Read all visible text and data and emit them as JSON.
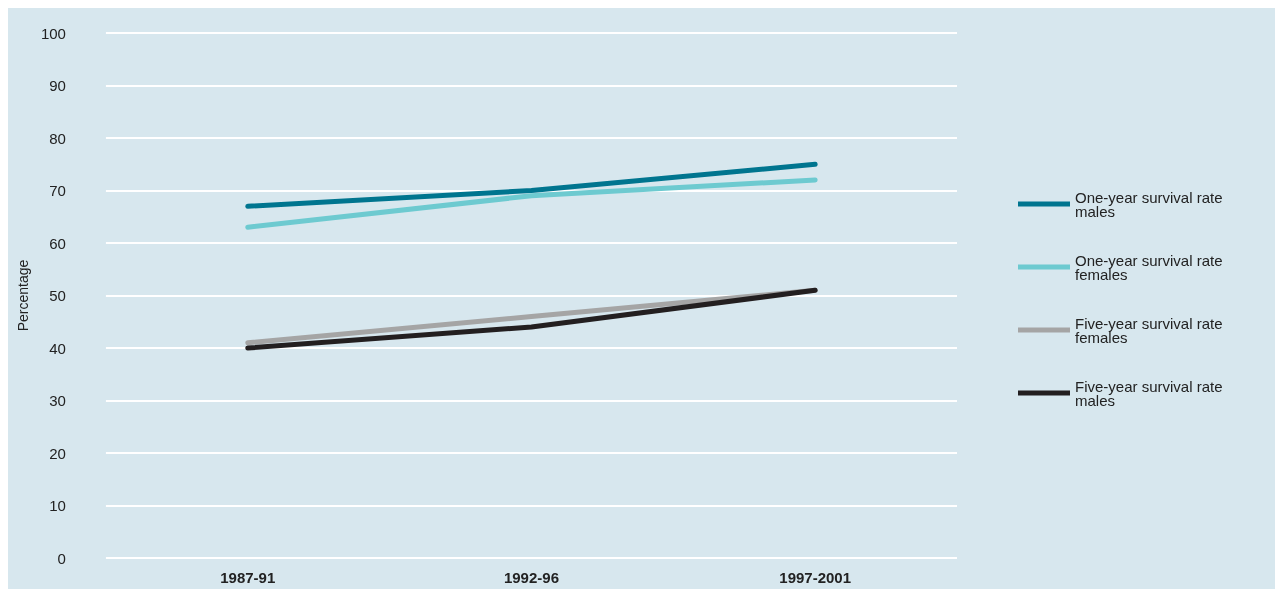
{
  "chart_data": {
    "type": "line",
    "ylabel": "Percentage",
    "categories": [
      "1987-91",
      "1992-96",
      "1997-2001"
    ],
    "series": [
      {
        "name": "One-year survival rate males",
        "color": "#00758f",
        "values": [
          67,
          70,
          75
        ]
      },
      {
        "name": "One-year survival rate females",
        "color": "#6dcad0",
        "values": [
          63,
          69,
          72
        ]
      },
      {
        "name": "Five-year survival rate females",
        "color": "#a5a5a5",
        "values": [
          41,
          46,
          51
        ]
      },
      {
        "name": "Five-year survival rate males",
        "color": "#231f20",
        "values": [
          40,
          44,
          51
        ]
      }
    ],
    "ylim": [
      0,
      100
    ],
    "yticks": [
      0,
      10,
      20,
      30,
      40,
      50,
      60,
      70,
      80,
      90,
      100
    ],
    "grid": "y",
    "legend": "right",
    "marker": "none",
    "line_style": "solid"
  }
}
